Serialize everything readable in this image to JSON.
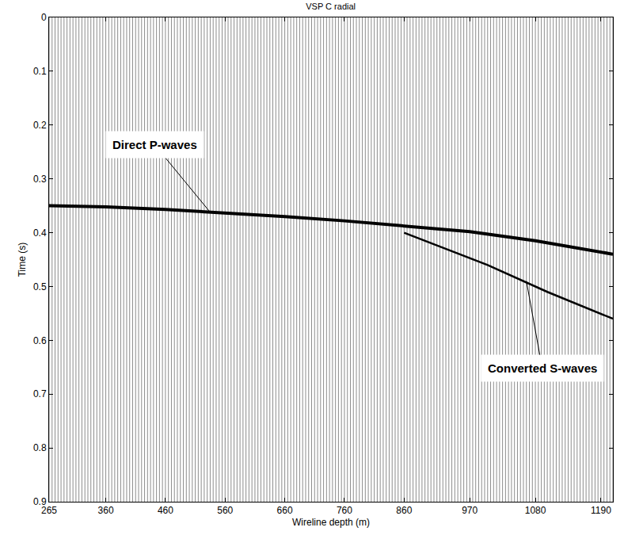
{
  "chart_data": {
    "type": "wiggle",
    "title": "VSP C radial",
    "x_label": "Wireline depth (m)",
    "y_label": "Time (s)",
    "xlim": [
      265,
      1210
    ],
    "ylim": [
      0,
      0.9
    ],
    "xticks": [
      265,
      360,
      460,
      560,
      660,
      760,
      860,
      970,
      1080,
      1190
    ],
    "yticks": [
      0,
      0.1,
      0.2,
      0.3,
      0.4,
      0.5,
      0.6,
      0.7,
      0.8,
      0.9
    ],
    "grid": false,
    "color": "#000000",
    "traces": [
      265,
      270,
      275,
      280,
      285,
      290,
      295,
      300,
      305,
      310,
      315,
      320,
      325,
      330,
      335,
      340,
      345,
      350,
      355,
      360,
      365,
      370,
      375,
      380,
      385,
      390,
      395,
      400,
      405,
      410,
      415,
      420,
      425,
      430,
      435,
      440,
      445,
      450,
      455,
      460,
      465,
      470,
      475,
      480,
      485,
      490,
      495,
      500,
      505,
      510,
      515,
      520,
      525,
      530,
      535,
      540,
      545,
      550,
      555,
      560,
      565,
      570,
      575,
      580,
      585,
      590,
      595,
      600,
      605,
      610,
      615,
      620,
      625,
      630,
      635,
      640,
      645,
      650,
      655,
      660,
      665,
      670,
      675,
      680,
      685,
      690,
      695,
      700,
      705,
      710,
      715,
      720,
      725,
      730,
      735,
      740,
      745,
      750,
      755,
      760,
      765,
      770,
      775,
      780,
      785,
      790,
      795,
      800,
      805,
      810,
      815,
      820,
      825,
      830,
      835,
      840,
      845,
      850,
      855,
      860,
      865,
      870,
      875,
      880,
      885,
      890,
      895,
      900,
      905,
      910,
      915,
      920,
      925,
      930,
      935,
      940,
      945,
      950,
      955,
      960,
      965,
      970,
      975,
      980,
      985,
      990,
      995,
      1000,
      1005,
      1010,
      1015,
      1020,
      1025,
      1030,
      1035,
      1040,
      1045,
      1050,
      1055,
      1060,
      1065,
      1070,
      1075,
      1080,
      1085,
      1090,
      1095,
      1100,
      1105,
      1110,
      1115,
      1120,
      1125,
      1130,
      1135,
      1140,
      1145,
      1150,
      1155,
      1160,
      1165,
      1170,
      1175,
      1180,
      1185,
      1190,
      1195,
      1200,
      1205,
      1210
    ],
    "events": [
      {
        "name": "Direct P-waves",
        "depth": [
          265,
          360,
          460,
          560,
          660,
          760,
          860,
          970,
          1080,
          1190,
          1210
        ],
        "time": [
          0.35,
          0.352,
          0.357,
          0.363,
          0.37,
          0.378,
          0.387,
          0.398,
          0.415,
          0.435,
          0.44
        ],
        "arrow_to": {
          "depth": 535,
          "time": 0.362
        }
      },
      {
        "name": "Converted S-waves",
        "depth": [
          860,
          1000,
          1100,
          1210
        ],
        "time": [
          0.4,
          0.46,
          0.51,
          0.56
        ],
        "arrow_to": {
          "depth": 1065,
          "time": 0.49
        }
      }
    ]
  }
}
